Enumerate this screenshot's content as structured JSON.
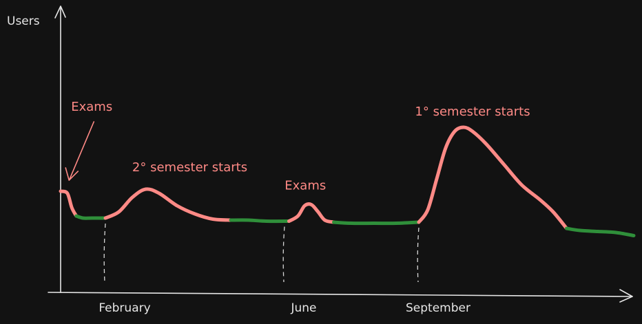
{
  "chart_data": {
    "type": "line",
    "ylabel": "Users",
    "xlabel": "",
    "x_ticks": [
      {
        "label": "February",
        "x": 1
      },
      {
        "label": "June",
        "x": 5
      },
      {
        "label": "September",
        "x": 8
      }
    ],
    "xlim": [
      0,
      11.5
    ],
    "ylim": [
      0,
      100
    ],
    "colors": {
      "peak": "#ff8a86",
      "normal": "#2f8f3a"
    },
    "points": [
      [
        0.0,
        49
      ],
      [
        0.15,
        48
      ],
      [
        0.25,
        41
      ],
      [
        0.35,
        37
      ],
      [
        0.5,
        36
      ],
      [
        0.7,
        36
      ],
      [
        1.0,
        36
      ],
      [
        1.3,
        39
      ],
      [
        1.6,
        46
      ],
      [
        1.9,
        50
      ],
      [
        2.2,
        48
      ],
      [
        2.6,
        42
      ],
      [
        3.0,
        38
      ],
      [
        3.4,
        35.5
      ],
      [
        3.8,
        35
      ],
      [
        4.2,
        35
      ],
      [
        4.6,
        34.5
      ],
      [
        5.1,
        34.5
      ],
      [
        5.3,
        37
      ],
      [
        5.45,
        42
      ],
      [
        5.6,
        42.5
      ],
      [
        5.75,
        39
      ],
      [
        5.9,
        35
      ],
      [
        6.1,
        34
      ],
      [
        6.5,
        33.5
      ],
      [
        7.0,
        33.5
      ],
      [
        7.5,
        33.5
      ],
      [
        8.0,
        34
      ],
      [
        8.2,
        40
      ],
      [
        8.4,
        55
      ],
      [
        8.6,
        70
      ],
      [
        8.8,
        78
      ],
      [
        9.0,
        80
      ],
      [
        9.2,
        78
      ],
      [
        9.5,
        72
      ],
      [
        9.9,
        62
      ],
      [
        10.3,
        52
      ],
      [
        10.7,
        45
      ],
      [
        11.0,
        39
      ],
      [
        11.3,
        31
      ],
      [
        11.6,
        30
      ],
      [
        12.0,
        29.5
      ],
      [
        12.4,
        29
      ],
      [
        12.8,
        27.5
      ]
    ],
    "segments": [
      {
        "from": 0.0,
        "to": 0.35,
        "level": "peak"
      },
      {
        "from": 0.35,
        "to": 1.0,
        "level": "normal"
      },
      {
        "from": 1.0,
        "to": 3.8,
        "level": "peak"
      },
      {
        "from": 3.8,
        "to": 5.1,
        "level": "normal"
      },
      {
        "from": 5.1,
        "to": 6.1,
        "level": "peak"
      },
      {
        "from": 6.1,
        "to": 8.0,
        "level": "normal"
      },
      {
        "from": 8.0,
        "to": 11.3,
        "level": "peak"
      },
      {
        "from": 11.3,
        "to": 12.8,
        "level": "normal"
      }
    ],
    "annotations": [
      {
        "text": "Exams",
        "x": 0.05,
        "y": 49,
        "arrow": true
      },
      {
        "text": "2° semester starts",
        "x": 1.9,
        "y": 50,
        "arrow": false
      },
      {
        "text": "Exams",
        "x": 5.45,
        "y": 42.5,
        "arrow": false
      },
      {
        "text": "1° semester starts",
        "x": 9.0,
        "y": 80,
        "arrow": false
      }
    ]
  }
}
